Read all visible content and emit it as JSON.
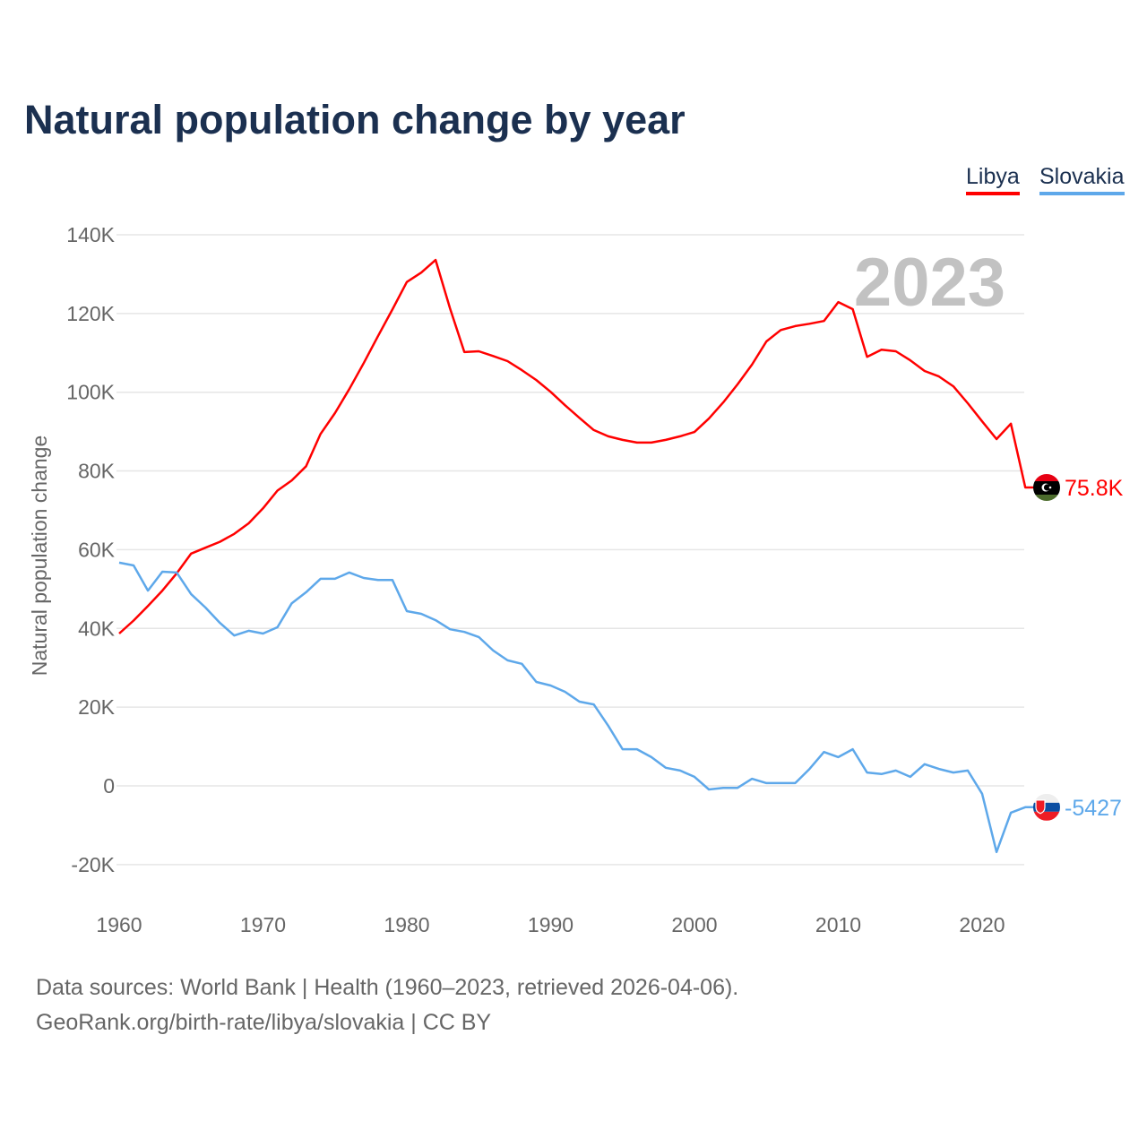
{
  "chart_data": {
    "type": "line",
    "title": "Natural population change by year",
    "ylabel": "Natural population change",
    "xlabel": "",
    "xlim": [
      1960,
      2023
    ],
    "ylim": [
      -30000,
      145000
    ],
    "yticks": [
      -20000,
      0,
      20000,
      40000,
      60000,
      80000,
      100000,
      120000,
      140000
    ],
    "ytick_labels": [
      "-20K",
      "0",
      "20K",
      "40K",
      "60K",
      "80K",
      "100K",
      "120K",
      "140K"
    ],
    "xticks": [
      1960,
      1970,
      1980,
      1990,
      2000,
      2010,
      2020
    ],
    "xtick_labels": [
      "1960",
      "1970",
      "1980",
      "1990",
      "2000",
      "2010",
      "2020"
    ],
    "grid": true,
    "legend_position": "top-right",
    "year_watermark": "2023",
    "x_start": 1960,
    "series": [
      {
        "name": "Libya",
        "color": "#ff0000",
        "end_label": "75.8K",
        "flag": "libya-flag",
        "values": [
          38700,
          42000,
          45700,
          49600,
          54000,
          59000,
          60500,
          62000,
          64000,
          66700,
          70500,
          75000,
          77600,
          81200,
          89400,
          94700,
          100800,
          107400,
          114300,
          121000,
          128000,
          130400,
          133600,
          121300,
          110200,
          110400,
          109200,
          107900,
          105600,
          103100,
          100100,
          96700,
          93500,
          90400,
          88800,
          87900,
          87200,
          87200,
          87900,
          88800,
          89900,
          93300,
          97400,
          102000,
          107000,
          112900,
          115800,
          116800,
          117400,
          118100,
          122900,
          121100,
          109000,
          110800,
          110400,
          108100,
          105400,
          104000,
          101500,
          97200,
          92600,
          88100,
          92000,
          75800
        ]
      },
      {
        "name": "Slovakia",
        "color": "#5ea8ea",
        "end_label": "-5427",
        "flag": "slovakia-flag",
        "values": [
          56700,
          56000,
          49600,
          54400,
          54200,
          48700,
          45300,
          41400,
          38200,
          39400,
          38700,
          40300,
          46400,
          49200,
          52600,
          52600,
          54200,
          52800,
          52300,
          52300,
          44400,
          43700,
          42100,
          39800,
          39100,
          37800,
          34400,
          31900,
          31000,
          26400,
          25500,
          23900,
          21400,
          20700,
          15300,
          9300,
          9300,
          7300,
          4600,
          3900,
          2300,
          -900,
          -500,
          -500,
          1800,
          700,
          700,
          700,
          4300,
          8600,
          7300,
          9300,
          3400,
          3000,
          3900,
          2300,
          5500,
          4300,
          3400,
          3900,
          -2000,
          -16800,
          -6800,
          -5427
        ]
      }
    ]
  },
  "footer": {
    "line1": "Data sources: World Bank | Health (1960–2023, retrieved 2026-04-06).",
    "line2": "GeoRank.org/birth-rate/libya/slovakia | CC BY"
  }
}
